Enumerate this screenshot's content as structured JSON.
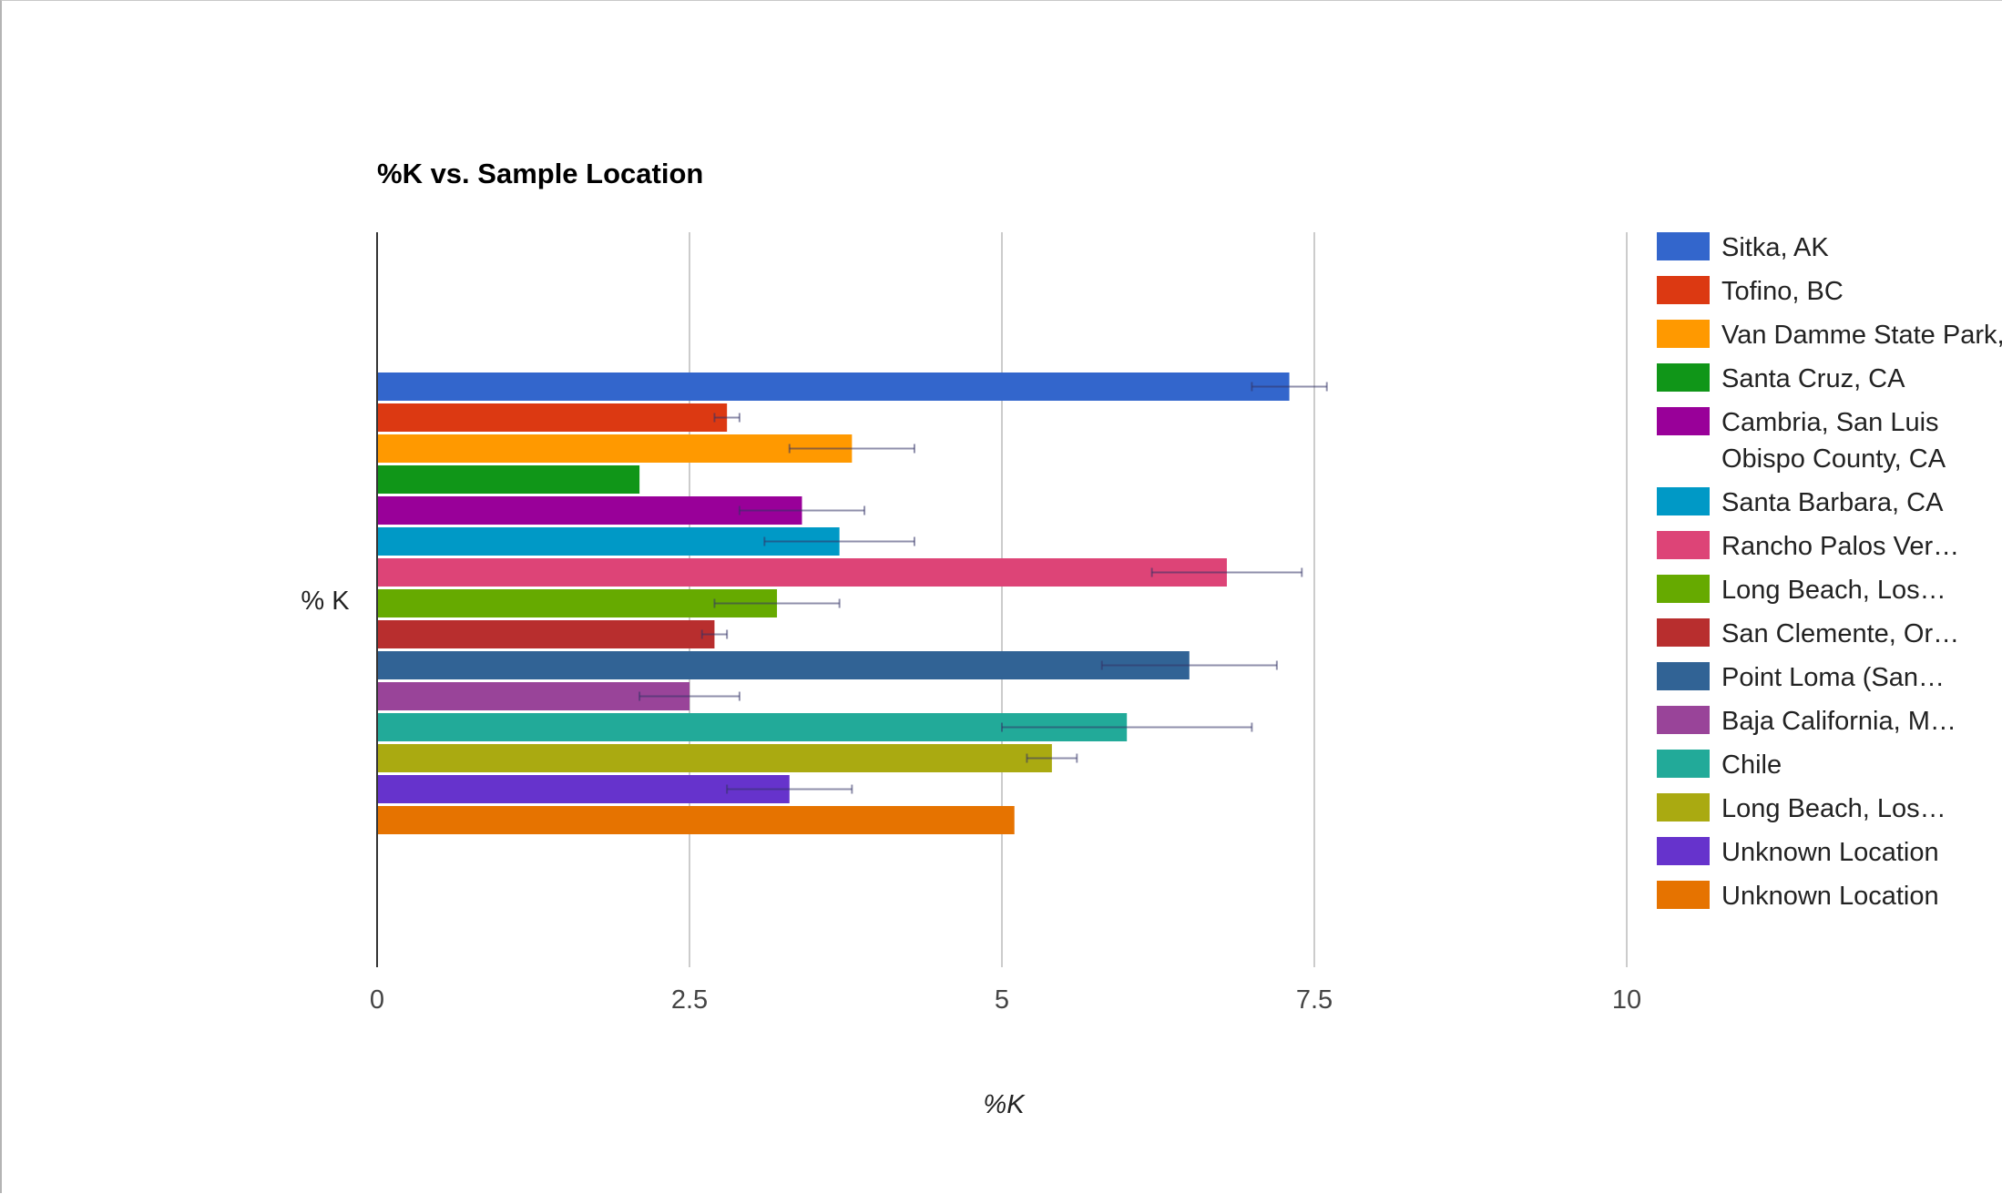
{
  "chart_data": {
    "type": "bar",
    "orientation": "horizontal",
    "title": "%K vs. Sample Location",
    "xlabel": "%K",
    "ylabel": "% K",
    "xlim": [
      0,
      10
    ],
    "x_ticks": [
      "0",
      "2.5",
      "5",
      "7.5",
      "10"
    ],
    "x_tick_values": [
      0,
      2.5,
      5,
      7.5,
      10
    ],
    "grid": "vertical",
    "legend_position": "right",
    "series": [
      {
        "name": "Sitka, AK",
        "value": 7.3,
        "error": 0.3,
        "color": "#3366cc"
      },
      {
        "name": "Tofino, BC",
        "value": 2.8,
        "error": 0.1,
        "color": "#dc3912"
      },
      {
        "name": "Van Damme State Park, CA",
        "value": 3.8,
        "error": 0.5,
        "color": "#ff9900"
      },
      {
        "name": "Santa Cruz, CA",
        "value": 2.1,
        "error": null,
        "color": "#109618"
      },
      {
        "name": "Cambria, San Luis Obispo County, CA",
        "value": 3.4,
        "error": 0.5,
        "color": "#990099"
      },
      {
        "name": "Santa Barbara, CA",
        "value": 3.7,
        "error": 0.6,
        "color": "#0099c6"
      },
      {
        "name": "Rancho Palos Ver…",
        "value": 6.8,
        "error": 0.6,
        "color": "#dd4477"
      },
      {
        "name": "Long Beach, Los…",
        "value": 3.2,
        "error": 0.5,
        "color": "#66aa00"
      },
      {
        "name": "San Clemente, Or…",
        "value": 2.7,
        "error": 0.1,
        "color": "#b82e2e"
      },
      {
        "name": "Point Loma (San…",
        "value": 6.5,
        "error": 0.7,
        "color": "#316395"
      },
      {
        "name": "Baja California, M…",
        "value": 2.5,
        "error": 0.4,
        "color": "#994499"
      },
      {
        "name": "Chile",
        "value": 6.0,
        "error": 1.0,
        "color": "#22aa99"
      },
      {
        "name": "Long Beach, Los…",
        "value": 5.4,
        "error": 0.2,
        "color": "#aaaa11"
      },
      {
        "name": "Unknown Location",
        "value": 3.3,
        "error": 0.5,
        "color": "#6633cc"
      },
      {
        "name": "Unknown Location",
        "value": 5.1,
        "error": null,
        "color": "#e67300"
      }
    ]
  }
}
